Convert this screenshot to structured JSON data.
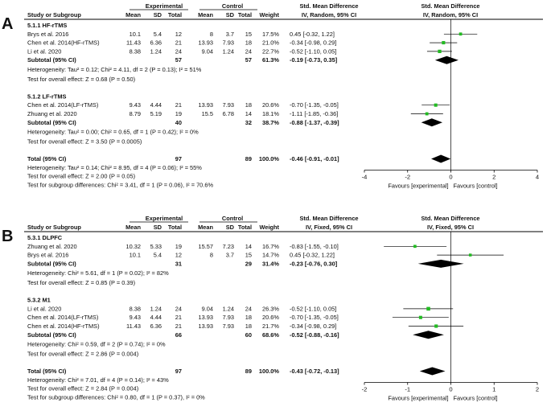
{
  "chart_data": [
    {
      "type": "forest",
      "panel_label": "A",
      "method_label": "IV, Random, 95% CI",
      "headers": {
        "study": "Study or Subgroup",
        "experimental": "Experimental",
        "control": "Control",
        "mean": "Mean",
        "sd": "SD",
        "total": "Total",
        "weight": "Weight",
        "smd": "Std. Mean Difference",
        "smd_plot": "Std. Mean Difference"
      },
      "subgroups": [
        {
          "title": "5.1.1 HF-rTMS",
          "studies": [
            {
              "name": "Brys et al. 2016",
              "e_mean": "10.1",
              "e_sd": "5.4",
              "e_n": "12",
              "c_mean": "8",
              "c_sd": "3.7",
              "c_n": "15",
              "weight": "17.5%",
              "ci": "0.45 [-0.32, 1.22]",
              "est": 0.45,
              "lo": -0.32,
              "hi": 1.22
            },
            {
              "name": "Chen et al. 2014(HF-rTMS)",
              "e_mean": "11.43",
              "e_sd": "6.36",
              "e_n": "21",
              "c_mean": "13.93",
              "c_sd": "7.93",
              "c_n": "18",
              "weight": "21.0%",
              "ci": "-0.34 [-0.98, 0.29]",
              "est": -0.34,
              "lo": -0.98,
              "hi": 0.29
            },
            {
              "name": "Li et al. 2020",
              "e_mean": "8.38",
              "e_sd": "1.24",
              "e_n": "24",
              "c_mean": "9.04",
              "c_sd": "1.24",
              "c_n": "24",
              "weight": "22.7%",
              "ci": "-0.52 [-1.10, 0.05]",
              "est": -0.52,
              "lo": -1.1,
              "hi": 0.05
            }
          ],
          "subtotal": {
            "label": "Subtotal (95% CI)",
            "e_n": "57",
            "c_n": "57",
            "weight": "61.3%",
            "ci": "-0.19 [-0.73, 0.35]",
            "est": -0.19,
            "lo": -0.73,
            "hi": 0.35
          },
          "heterogeneity": "Heterogeneity: Tau² = 0.12; Chi² = 4.11, df = 2 (P = 0.13); I² = 51%",
          "overall_test": "Test for overall effect: Z = 0.68 (P = 0.50)"
        },
        {
          "title": "5.1.2 LF-rTMS",
          "studies": [
            {
              "name": "Chen et al. 2014(LF-rTMS)",
              "e_mean": "9.43",
              "e_sd": "4.44",
              "e_n": "21",
              "c_mean": "13.93",
              "c_sd": "7.93",
              "c_n": "18",
              "weight": "20.6%",
              "ci": "-0.70 [-1.35, -0.05]",
              "est": -0.7,
              "lo": -1.35,
              "hi": -0.05
            },
            {
              "name": "Zhuang et al. 2020",
              "e_mean": "8.79",
              "e_sd": "5.19",
              "e_n": "19",
              "c_mean": "15.5",
              "c_sd": "6.78",
              "c_n": "14",
              "weight": "18.1%",
              "ci": "-1.11 [-1.85, -0.36]",
              "est": -1.11,
              "lo": -1.85,
              "hi": -0.36
            }
          ],
          "subtotal": {
            "label": "Subtotal (95% CI)",
            "e_n": "40",
            "c_n": "32",
            "weight": "38.7%",
            "ci": "-0.88 [-1.37, -0.39]",
            "est": -0.88,
            "lo": -1.37,
            "hi": -0.39
          },
          "heterogeneity": "Heterogeneity: Tau² = 0.00; Chi² = 0.65, df = 1 (P = 0.42); I² = 0%",
          "overall_test": "Test for overall effect: Z = 3.50 (P = 0.0005)"
        }
      ],
      "total": {
        "label": "Total (95% CI)",
        "e_n": "97",
        "c_n": "89",
        "weight": "100.0%",
        "ci": "-0.46 [-0.91, -0.01]",
        "est": -0.46,
        "lo": -0.91,
        "hi": -0.01
      },
      "footer": [
        "Heterogeneity: Tau² = 0.14; Chi² = 8.95, df = 4 (P = 0.06); I² = 55%",
        "Test for overall effect: Z = 2.00 (P = 0.05)",
        "Test for subgroup differences: Chi² = 3.41, df = 1 (P = 0.06), I² = 70.6%"
      ],
      "axis": {
        "min": -4,
        "max": 4,
        "ticks": [
          -4,
          -2,
          0,
          2,
          4
        ]
      },
      "favours_left": "Favours [experimental]",
      "favours_right": "Favours [control]"
    },
    {
      "type": "forest",
      "panel_label": "B",
      "method_label": "IV, Fixed, 95% CI",
      "headers": {
        "study": "Study or Subgroup",
        "experimental": "Experimental",
        "control": "Control",
        "mean": "Mean",
        "sd": "SD",
        "total": "Total",
        "weight": "Weight",
        "smd": "Std. Mean Difference",
        "smd_plot": "Std. Mean Difference"
      },
      "subgroups": [
        {
          "title": "5.3.1 DLPFC",
          "studies": [
            {
              "name": "Zhuang et al. 2020",
              "e_mean": "10.32",
              "e_sd": "5.33",
              "e_n": "19",
              "c_mean": "15.57",
              "c_sd": "7.23",
              "c_n": "14",
              "weight": "16.7%",
              "ci": "-0.83 [-1.55, -0.10]",
              "est": -0.83,
              "lo": -1.55,
              "hi": -0.1
            },
            {
              "name": "Brys et al. 2016",
              "e_mean": "10.1",
              "e_sd": "5.4",
              "e_n": "12",
              "c_mean": "8",
              "c_sd": "3.7",
              "c_n": "15",
              "weight": "14.7%",
              "ci": "0.45 [-0.32, 1.22]",
              "est": 0.45,
              "lo": -0.32,
              "hi": 1.22
            }
          ],
          "subtotal": {
            "label": "Subtotal (95% CI)",
            "e_n": "31",
            "c_n": "29",
            "weight": "31.4%",
            "ci": "-0.23 [-0.76, 0.30]",
            "est": -0.23,
            "lo": -0.76,
            "hi": 0.3
          },
          "heterogeneity": "Heterogeneity: Chi² = 5.61, df = 1 (P = 0.02); I² = 82%",
          "overall_test": "Test for overall effect: Z = 0.85 (P = 0.39)"
        },
        {
          "title": "5.3.2 M1",
          "studies": [
            {
              "name": "Li et al. 2020",
              "e_mean": "8.38",
              "e_sd": "1.24",
              "e_n": "24",
              "c_mean": "9.04",
              "c_sd": "1.24",
              "c_n": "24",
              "weight": "26.3%",
              "ci": "-0.52 [-1.10, 0.05]",
              "est": -0.52,
              "lo": -1.1,
              "hi": 0.05
            },
            {
              "name": "Chen et al. 2014(LF-rTMS)",
              "e_mean": "9.43",
              "e_sd": "4.44",
              "e_n": "21",
              "c_mean": "13.93",
              "c_sd": "7.93",
              "c_n": "18",
              "weight": "20.6%",
              "ci": "-0.70 [-1.35, -0.05]",
              "est": -0.7,
              "lo": -1.35,
              "hi": -0.05
            },
            {
              "name": "Chen et al. 2014(HF-rTMS)",
              "e_mean": "11.43",
              "e_sd": "6.36",
              "e_n": "21",
              "c_mean": "13.93",
              "c_sd": "7.93",
              "c_n": "18",
              "weight": "21.7%",
              "ci": "-0.34 [-0.98, 0.29]",
              "est": -0.34,
              "lo": -0.98,
              "hi": 0.29
            }
          ],
          "subtotal": {
            "label": "Subtotal (95% CI)",
            "e_n": "66",
            "c_n": "60",
            "weight": "68.6%",
            "ci": "-0.52 [-0.88, -0.16]",
            "est": -0.52,
            "lo": -0.88,
            "hi": -0.16
          },
          "heterogeneity": "Heterogeneity: Chi² = 0.59, df = 2 (P = 0.74); I² = 0%",
          "overall_test": "Test for overall effect: Z = 2.86 (P = 0.004)"
        }
      ],
      "total": {
        "label": "Total (95% CI)",
        "e_n": "97",
        "c_n": "89",
        "weight": "100.0%",
        "ci": "-0.43 [-0.72, -0.13]",
        "est": -0.43,
        "lo": -0.72,
        "hi": -0.13
      },
      "footer": [
        "Heterogeneity: Chi² = 7.01, df = 4 (P = 0.14); I² = 43%",
        "Test for overall effect: Z = 2.84 (P = 0.004)",
        "Test for subgroup differences: Chi² = 0.80, df = 1 (P = 0.37), I² = 0%"
      ],
      "axis": {
        "min": -2,
        "max": 2,
        "ticks": [
          -2,
          -1,
          0,
          1,
          2
        ]
      },
      "favours_left": "Favours [experimental]",
      "favours_right": "Favours [control]"
    }
  ],
  "colors": {
    "marker": "#22bb22",
    "diamond": "#000000",
    "header_rule": "#000000"
  }
}
